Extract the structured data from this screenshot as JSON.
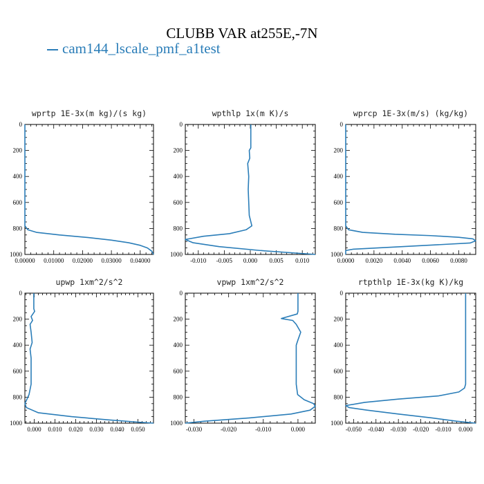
{
  "title": "CLUBB VAR at255E,-7N",
  "legend": {
    "label": "cam144_lscale_pmf_a1test",
    "color": "#2a7db8"
  },
  "chart_data": [
    {
      "type": "line",
      "title": "wprtp  1E-3x(m kg)/(s kg)",
      "xlim": [
        0,
        0.0446
      ],
      "ylim": [
        0,
        1000
      ],
      "y_inverted": true,
      "xticks": [
        0,
        0.01,
        0.02,
        0.03,
        0.04
      ],
      "xtick_labels": [
        "0.00000",
        "0.01000",
        "0.02000",
        "0.03000",
        "0.04000"
      ],
      "yticks": [
        0,
        200,
        400,
        600,
        800,
        1000
      ],
      "series": [
        {
          "x": [
            0,
            0,
            0.001,
            0.004,
            0.012,
            0.022,
            0.03,
            0.036,
            0.04,
            0.0425,
            0.044,
            0.0446
          ],
          "y": [
            0,
            780,
            810,
            830,
            850,
            870,
            890,
            910,
            930,
            950,
            975,
            1000
          ]
        }
      ]
    },
    {
      "type": "line",
      "title": "wpthlp  1x(m K)/s",
      "xlim": [
        -0.0125,
        0.0125
      ],
      "ylim": [
        0,
        1000
      ],
      "y_inverted": true,
      "xticks": [
        -0.01,
        -0.005,
        0,
        0.005,
        0.01
      ],
      "xtick_labels": [
        "-0.010",
        "-0.005",
        "0.000",
        "0.005",
        "0.010"
      ],
      "yticks": [
        0,
        200,
        400,
        600,
        800,
        1000
      ],
      "series": [
        {
          "x": [
            0.0001,
            0.0001,
            -0.0002,
            -0.0001,
            -0.0005,
            -0.0003,
            -0.0004,
            -0.0002,
            0.0003,
            -0.0008,
            -0.004,
            -0.009,
            -0.0125,
            -0.011,
            -0.006,
            0.002,
            0.009,
            0.0125
          ],
          "y": [
            0,
            180,
            200,
            260,
            300,
            400,
            500,
            700,
            780,
            810,
            840,
            860,
            885,
            910,
            940,
            970,
            990,
            1000
          ]
        }
      ]
    },
    {
      "type": "line",
      "title": "wprcp  1E-3x(m/s) (kg/kg)",
      "xlim": [
        0,
        0.0092
      ],
      "ylim": [
        0,
        1000
      ],
      "y_inverted": true,
      "xticks": [
        0,
        0.002,
        0.004,
        0.006,
        0.008
      ],
      "xtick_labels": [
        "0.0000",
        "0.0020",
        "0.0040",
        "0.0060",
        "0.0080"
      ],
      "yticks": [
        0,
        200,
        400,
        600,
        800,
        1000
      ],
      "series": [
        {
          "x": [
            0,
            0,
            0.0002,
            0.0012,
            0.0035,
            0.006,
            0.008,
            0.009,
            0.0092,
            0.0088,
            0.004,
            0.0005,
            0,
            0
          ],
          "y": [
            0,
            780,
            810,
            830,
            845,
            855,
            868,
            880,
            895,
            912,
            940,
            960,
            970,
            1000
          ]
        }
      ]
    },
    {
      "type": "line",
      "title": "upwp  1xm^2/s^2",
      "xlim": [
        -0.0045,
        0.0575
      ],
      "ylim": [
        0,
        1000
      ],
      "y_inverted": true,
      "xticks": [
        0,
        0.01,
        0.02,
        0.03,
        0.04,
        0.05
      ],
      "xtick_labels": [
        "0.000",
        "0.010",
        "0.020",
        "0.030",
        "0.040",
        "0.050"
      ],
      "yticks": [
        0,
        200,
        400,
        600,
        800,
        1000
      ],
      "series": [
        {
          "x": [
            -0.0002,
            -0.0002,
            0.0002,
            -0.0015,
            -0.0008,
            -0.002,
            -0.0015,
            -0.001,
            -0.002,
            -0.0015,
            -0.0015,
            -0.0025,
            -0.0045,
            -0.0038,
            0.002,
            0.018,
            0.036,
            0.05,
            0.0575
          ],
          "y": [
            0,
            120,
            140,
            180,
            210,
            240,
            300,
            380,
            430,
            500,
            700,
            780,
            850,
            880,
            920,
            950,
            975,
            992,
            1000
          ]
        }
      ]
    },
    {
      "type": "line",
      "title": "vpwp  1xm^2/s^2",
      "xlim": [
        -0.0325,
        0.005
      ],
      "ylim": [
        0,
        1000
      ],
      "y_inverted": true,
      "xticks": [
        -0.03,
        -0.02,
        -0.01,
        0
      ],
      "xtick_labels": [
        "-0.030",
        "-0.020",
        "-0.010",
        "0.000"
      ],
      "yticks": [
        0,
        200,
        400,
        600,
        800,
        1000
      ],
      "series": [
        {
          "x": [
            0,
            0,
            -0.0002,
            -0.0048,
            -0.0015,
            -0.0005,
            0.0008,
            0,
            -0.0005,
            -0.0005,
            -0.0001,
            0.0018,
            0.0045,
            0.005,
            0.0035,
            -0.002,
            -0.014,
            -0.027,
            -0.0325
          ],
          "y": [
            0,
            140,
            160,
            195,
            210,
            240,
            300,
            360,
            400,
            700,
            780,
            820,
            850,
            870,
            900,
            930,
            960,
            985,
            1000
          ]
        }
      ]
    },
    {
      "type": "line",
      "title": "rtpthlp  1E-3x(kg K)/kg",
      "xlim": [
        -0.0535,
        0.0045
      ],
      "ylim": [
        0,
        1000
      ],
      "y_inverted": true,
      "xticks": [
        -0.05,
        -0.04,
        -0.03,
        -0.02,
        -0.01,
        0
      ],
      "xtick_labels": [
        "-0.050",
        "-0.040",
        "-0.030",
        "-0.020",
        "-0.010",
        "0.000"
      ],
      "yticks": [
        0,
        200,
        400,
        600,
        800,
        1000
      ],
      "series": [
        {
          "x": [
            0,
            0,
            -0.0005,
            -0.003,
            -0.012,
            -0.03,
            -0.045,
            -0.0535,
            -0.052,
            -0.044,
            -0.03,
            -0.015,
            -0.004,
            0.0045
          ],
          "y": [
            0,
            700,
            730,
            760,
            790,
            815,
            840,
            865,
            880,
            900,
            930,
            960,
            985,
            1000
          ]
        }
      ]
    }
  ]
}
